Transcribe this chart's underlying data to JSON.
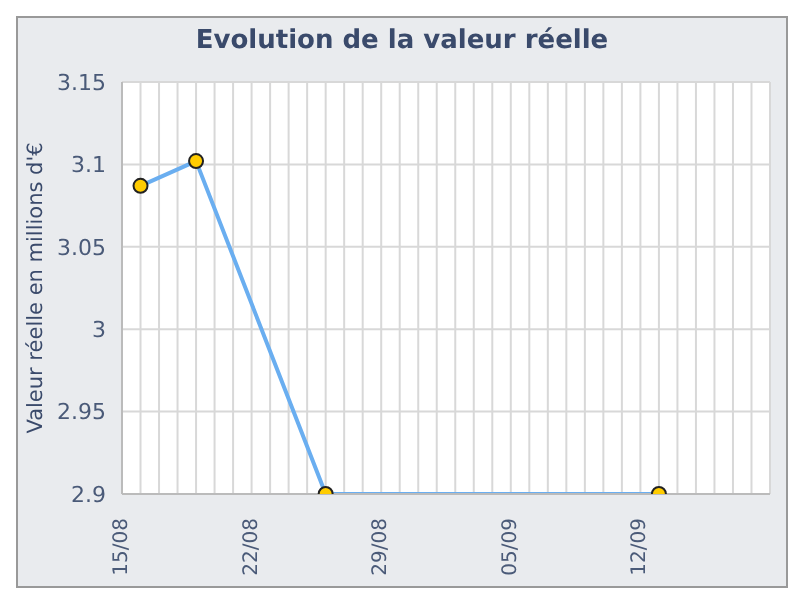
{
  "chart_data": {
    "type": "line",
    "title": "Evolution de la valeur réelle",
    "ylabel": "Valeur réelle en millions d'€",
    "x": [
      "--08-16",
      "--08-19",
      "--08-26",
      "--09-13"
    ],
    "series": [
      {
        "color": "#6aaef0",
        "values": [
          3.087,
          3.102,
          2.9,
          2.9
        ]
      }
    ],
    "xlim": [
      "--08-15",
      "--09-19"
    ],
    "xticks": [
      {
        "value": "--08-15",
        "label": "15/08"
      },
      {
        "value": "--08-22",
        "label": "22/08"
      },
      {
        "value": "--08-29",
        "label": "29/08"
      },
      {
        "value": "--09-05",
        "label": "05/09"
      },
      {
        "value": "--09-12",
        "label": "12/09"
      }
    ],
    "ylim": [
      2.9,
      3.15
    ],
    "yticks": [
      2.9,
      2.95,
      3,
      3.05,
      3.1,
      3.15
    ],
    "grid": true,
    "marker": "circle",
    "line_style": "solid",
    "legend": false
  }
}
